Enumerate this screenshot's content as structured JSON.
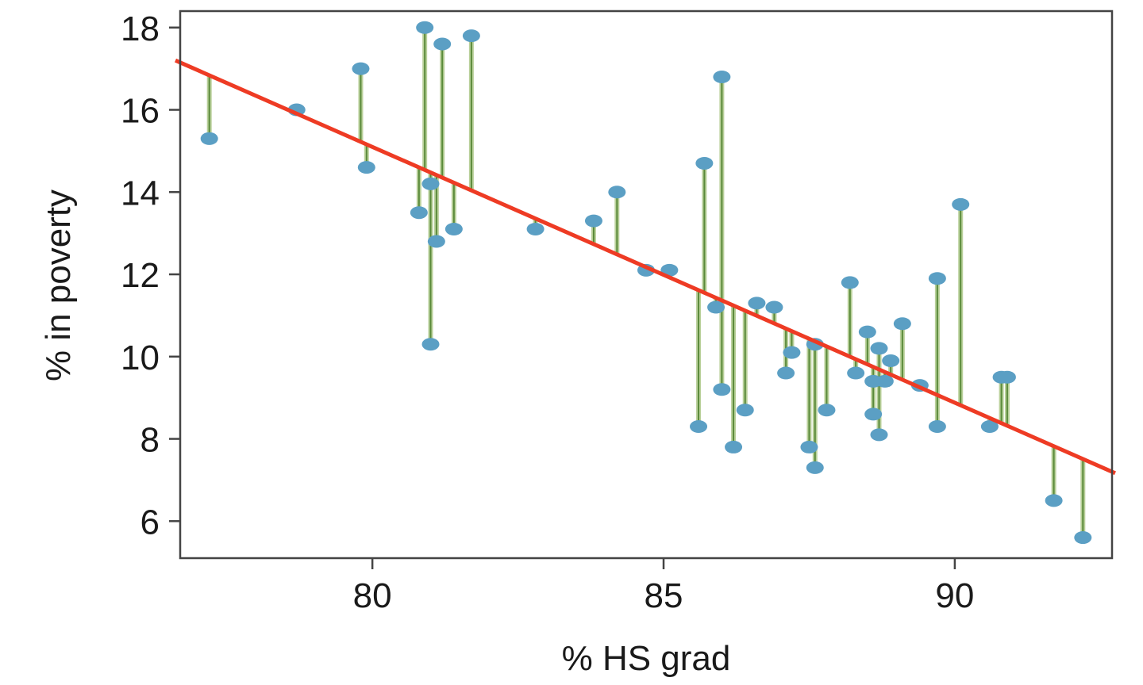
{
  "chart_data": {
    "type": "scatter",
    "title": "",
    "xlabel": "% HS grad",
    "ylabel": "% in poverty",
    "xlim": [
      76.7,
      92.7
    ],
    "ylim": [
      5.1,
      18.4
    ],
    "xticks": [
      80,
      85,
      90
    ],
    "yticks": [
      6,
      8,
      10,
      12,
      14,
      16,
      18
    ],
    "grid": false,
    "legend": "none",
    "residual_lines": true,
    "colors": {
      "points": "#5b9fc4",
      "regression_line": "#ee3b24",
      "residuals": "#5a8a3a",
      "residual_fill": "#b9d09a",
      "axes": "#444444"
    },
    "regression_line": {
      "x1": 76.7,
      "y1": 17.15,
      "x2": 92.7,
      "y2": 7.2
    },
    "points": [
      {
        "x": 77.2,
        "y": 15.3
      },
      {
        "x": 78.7,
        "y": 16.0
      },
      {
        "x": 79.8,
        "y": 17.0
      },
      {
        "x": 79.9,
        "y": 14.6
      },
      {
        "x": 80.8,
        "y": 13.5
      },
      {
        "x": 80.9,
        "y": 18.0
      },
      {
        "x": 81.0,
        "y": 14.2
      },
      {
        "x": 81.0,
        "y": 10.3
      },
      {
        "x": 81.1,
        "y": 12.8
      },
      {
        "x": 81.2,
        "y": 17.6
      },
      {
        "x": 81.4,
        "y": 13.1
      },
      {
        "x": 81.7,
        "y": 17.8
      },
      {
        "x": 82.8,
        "y": 13.1
      },
      {
        "x": 83.8,
        "y": 13.3
      },
      {
        "x": 84.2,
        "y": 14.0
      },
      {
        "x": 84.7,
        "y": 12.1
      },
      {
        "x": 85.1,
        "y": 12.1
      },
      {
        "x": 85.6,
        "y": 8.3
      },
      {
        "x": 85.7,
        "y": 14.7
      },
      {
        "x": 85.9,
        "y": 11.2
      },
      {
        "x": 86.0,
        "y": 16.8
      },
      {
        "x": 86.0,
        "y": 9.2
      },
      {
        "x": 86.2,
        "y": 7.8
      },
      {
        "x": 86.4,
        "y": 8.7
      },
      {
        "x": 86.6,
        "y": 11.3
      },
      {
        "x": 86.9,
        "y": 11.2
      },
      {
        "x": 87.1,
        "y": 9.6
      },
      {
        "x": 87.2,
        "y": 10.1
      },
      {
        "x": 87.5,
        "y": 7.8
      },
      {
        "x": 87.6,
        "y": 7.3
      },
      {
        "x": 87.6,
        "y": 10.3
      },
      {
        "x": 87.8,
        "y": 8.7
      },
      {
        "x": 88.2,
        "y": 11.8
      },
      {
        "x": 88.3,
        "y": 9.6
      },
      {
        "x": 88.5,
        "y": 10.6
      },
      {
        "x": 88.6,
        "y": 9.4
      },
      {
        "x": 88.6,
        "y": 8.6
      },
      {
        "x": 88.7,
        "y": 10.2
      },
      {
        "x": 88.7,
        "y": 8.1
      },
      {
        "x": 88.8,
        "y": 9.4
      },
      {
        "x": 88.9,
        "y": 9.9
      },
      {
        "x": 89.1,
        "y": 10.8
      },
      {
        "x": 89.4,
        "y": 9.3
      },
      {
        "x": 89.7,
        "y": 11.9
      },
      {
        "x": 89.7,
        "y": 8.3
      },
      {
        "x": 90.1,
        "y": 13.7
      },
      {
        "x": 90.6,
        "y": 8.3
      },
      {
        "x": 90.8,
        "y": 9.5
      },
      {
        "x": 90.9,
        "y": 9.5
      },
      {
        "x": 91.7,
        "y": 6.5
      },
      {
        "x": 92.2,
        "y": 5.6
      }
    ]
  }
}
